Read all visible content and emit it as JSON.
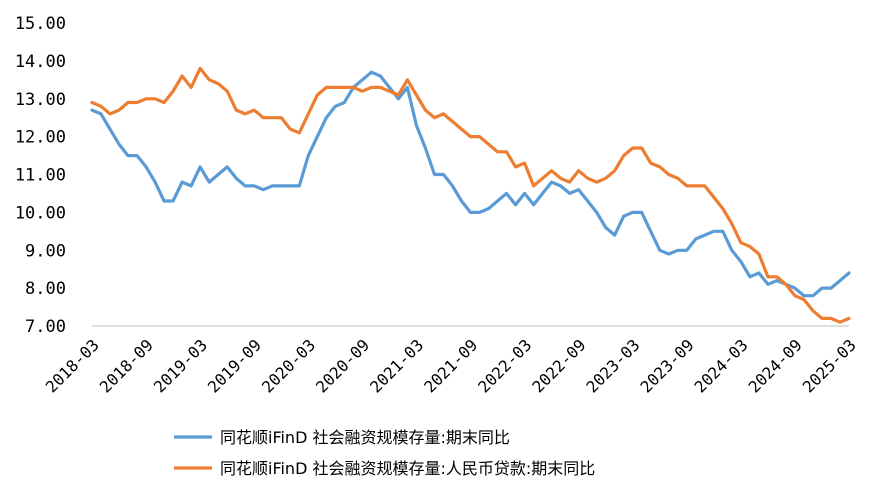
{
  "chart_data": {
    "type": "line",
    "title": "",
    "xlabel": "",
    "ylabel": "",
    "ylim": [
      7.0,
      15.0
    ],
    "y_ticks": [
      "15.00",
      "14.00",
      "13.00",
      "12.00",
      "11.00",
      "10.00",
      "9.00",
      "8.00",
      "7.00"
    ],
    "x_ticks": [
      "2018-03",
      "2018-09",
      "2019-03",
      "2019-09",
      "2020-03",
      "2020-09",
      "2021-03",
      "2021-09",
      "2022-03",
      "2022-09",
      "2023-03",
      "2023-09",
      "2024-03",
      "2024-09",
      "2025-03"
    ],
    "x_range": [
      "2018-03",
      "2025-03"
    ],
    "grid": false,
    "legend_position": "bottom",
    "series": [
      {
        "name": "同花顺iFinD 社会融资规模存量:期末同比",
        "color": "#5b9bd5",
        "values": [
          12.7,
          12.6,
          12.2,
          11.8,
          11.5,
          11.5,
          11.2,
          10.8,
          10.3,
          10.3,
          10.8,
          10.7,
          11.2,
          10.8,
          11.0,
          11.2,
          10.9,
          10.7,
          10.7,
          10.6,
          10.7,
          10.7,
          10.7,
          10.7,
          11.5,
          12.0,
          12.5,
          12.8,
          12.9,
          13.3,
          13.5,
          13.7,
          13.6,
          13.3,
          13.0,
          13.3,
          12.3,
          11.7,
          11.0,
          11.0,
          10.7,
          10.3,
          10.0,
          10.0,
          10.1,
          10.3,
          10.5,
          10.2,
          10.5,
          10.2,
          10.5,
          10.8,
          10.7,
          10.5,
          10.6,
          10.3,
          10.0,
          9.6,
          9.4,
          9.9,
          10.0,
          10.0,
          9.5,
          9.0,
          8.9,
          9.0,
          9.0,
          9.3,
          9.4,
          9.5,
          9.5,
          9.0,
          8.7,
          8.3,
          8.4,
          8.1,
          8.2,
          8.1,
          8.0,
          7.8,
          7.8,
          8.0,
          8.0,
          8.2,
          8.4
        ]
      },
      {
        "name": "同花顺iFinD 社会融资规模存量:人民币贷款:期末同比",
        "color": "#ed7d31",
        "values": [
          12.9,
          12.8,
          12.6,
          12.7,
          12.9,
          12.9,
          13.0,
          13.0,
          12.9,
          13.2,
          13.6,
          13.3,
          13.8,
          13.5,
          13.4,
          13.2,
          12.7,
          12.6,
          12.7,
          12.5,
          12.5,
          12.5,
          12.2,
          12.1,
          12.6,
          13.1,
          13.3,
          13.3,
          13.3,
          13.3,
          13.2,
          13.3,
          13.3,
          13.2,
          13.1,
          13.5,
          13.1,
          12.7,
          12.5,
          12.6,
          12.4,
          12.2,
          12.0,
          12.0,
          11.8,
          11.6,
          11.6,
          11.2,
          11.3,
          10.7,
          10.9,
          11.1,
          10.9,
          10.8,
          11.1,
          10.9,
          10.8,
          10.9,
          11.1,
          11.5,
          11.7,
          11.7,
          11.3,
          11.2,
          11.0,
          10.9,
          10.7,
          10.7,
          10.7,
          10.4,
          10.1,
          9.7,
          9.2,
          9.1,
          8.9,
          8.3,
          8.3,
          8.1,
          7.8,
          7.7,
          7.4,
          7.2,
          7.2,
          7.1,
          7.2
        ]
      }
    ]
  }
}
